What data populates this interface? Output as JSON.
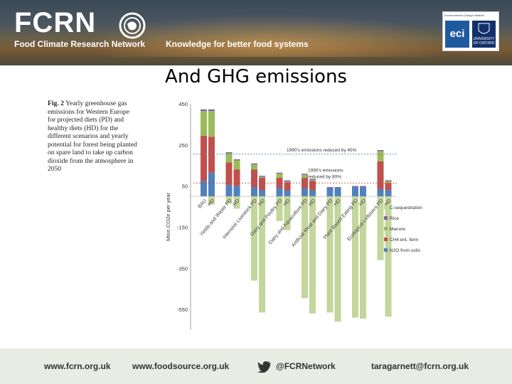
{
  "header": {
    "logo": "FCRN",
    "org_name": "Food Climate Research Network",
    "tagline": "Knowledge for better food systems",
    "partner_top": "Environmental Change Institute",
    "partner_mark": "eci",
    "partner_university": "UNIVERSITY OF OXFORD"
  },
  "title": "And GHG emissions",
  "caption": {
    "lead": "Fig. 2",
    "text": "Yearly greenhouse gas emissions for Western Europe for projected diets (PD) and healthy diets (HD) for the different scenarios and yearly potential for forest being planted on spare land to take up carbon dioxide from the atmosphere in 2050"
  },
  "footer": {
    "link1": "www.fcrn.org.uk",
    "link2": "www.foodsource.org.uk",
    "twitter": "@FCRNetwork",
    "email": "taragarnett@fcrn.org.uk"
  },
  "chart_data": {
    "type": "bar",
    "stacked": true,
    "ylabel": "Mton CO2e per year",
    "ylim": [
      -650,
      450
    ],
    "yticks": [
      450,
      250,
      50,
      -150,
      -350,
      -550
    ],
    "grid": false,
    "legend_position": "right",
    "categories": [
      "BAU PD",
      "BAU HD",
      "Yields and Waste PD",
      "Yields and Waste HD",
      "Intensive Livestock PD",
      "Intensive Livestock HD",
      "Dairy and Poultry PD",
      "Dairy and Poultry HD",
      "Dairy and Aquaculture PD",
      "Dairy and Aquaculture HD",
      "Artificial Meat and Dairy PD",
      "Artificial Meat and Dairy HD",
      "Plant Based Eating PD",
      "Plant Based Eating HD",
      "Ecological Leftovers PD",
      "Ecological Leftovers HD"
    ],
    "visible_x_labels": [
      "BAU",
      "HD",
      "Yields and Waste PD",
      "HD",
      "Intensive Livestock PD",
      "HD",
      "Dairy and Poultry PD",
      "HD",
      "Dairy and Aquaculture PD",
      "HD",
      "Artificial Meat and Dairy PD",
      "HD",
      "Plant Based Eating PD",
      "HD",
      "Ecological Leftovers PD",
      "HD"
    ],
    "series": [
      {
        "name": "N2O from soils",
        "color": "#4f81bd",
        "values": [
          75,
          115,
          55,
          50,
          45,
          30,
          40,
          28,
          40,
          30,
          40,
          40,
          45,
          45,
          35,
          30
        ]
      },
      {
        "name": "CH4 ent. ferm",
        "color": "#c0504d",
        "values": [
          220,
          175,
          110,
          80,
          85,
          60,
          50,
          40,
          50,
          45,
          0,
          0,
          0,
          0,
          135,
          35
        ]
      },
      {
        "name": "Manure",
        "color": "#9bbb59",
        "values": [
          120,
          125,
          45,
          45,
          25,
          5,
          20,
          5,
          15,
          5,
          0,
          0,
          0,
          0,
          50,
          8
        ]
      },
      {
        "name": "Rice",
        "color": "#8064a2",
        "values": [
          8,
          8,
          5,
          5,
          5,
          5,
          5,
          5,
          5,
          5,
          5,
          5,
          5,
          5,
          5,
          5
        ]
      },
      {
        "name": "C-sequestration",
        "color": "#c3d69b",
        "values": [
          0,
          -40,
          -35,
          -60,
          -410,
          -565,
          -120,
          -165,
          -495,
          -570,
          -565,
          -610,
          -590,
          -595,
          -310,
          -585
        ]
      }
    ],
    "reference_lines": [
      {
        "label": "1990's emissions reduced by 45%",
        "value": 205,
        "color": "#4f81bd"
      },
      {
        "label": "1990's emissions reduced by 80%",
        "value": 65,
        "color": "#c0504d"
      }
    ]
  }
}
